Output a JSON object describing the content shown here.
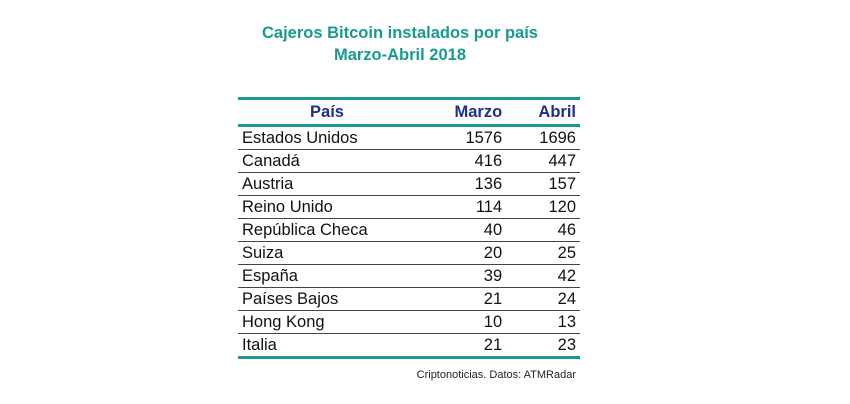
{
  "chart_data": {
    "type": "table",
    "title": "Cajeros Bitcoin instalados por país",
    "subtitle": "Marzo-Abril 2018",
    "columns": [
      "País",
      "Marzo",
      "Abril"
    ],
    "rows": [
      {
        "pais": "Estados Unidos",
        "marzo": "1576",
        "abril": "1696"
      },
      {
        "pais": "Canadá",
        "marzo": "416",
        "abril": "447"
      },
      {
        "pais": "Austria",
        "marzo": "136",
        "abril": "157"
      },
      {
        "pais": "Reino Unido",
        "marzo": "114",
        "abril": "120"
      },
      {
        "pais": "República Checa",
        "marzo": "40",
        "abril": "46"
      },
      {
        "pais": "Suiza",
        "marzo": "20",
        "abril": "25"
      },
      {
        "pais": "España",
        "marzo": "39",
        "abril": "42"
      },
      {
        "pais": "Países Bajos",
        "marzo": "21",
        "abril": "24"
      },
      {
        "pais": "Hong Kong",
        "marzo": "10",
        "abril": "13"
      },
      {
        "pais": "Italia",
        "marzo": "21",
        "abril": "23"
      }
    ],
    "source": "Criptonoticias. Datos: ATMRadar"
  },
  "colors": {
    "accent": "#1a9a8e",
    "header_text": "#1f2f8f"
  }
}
